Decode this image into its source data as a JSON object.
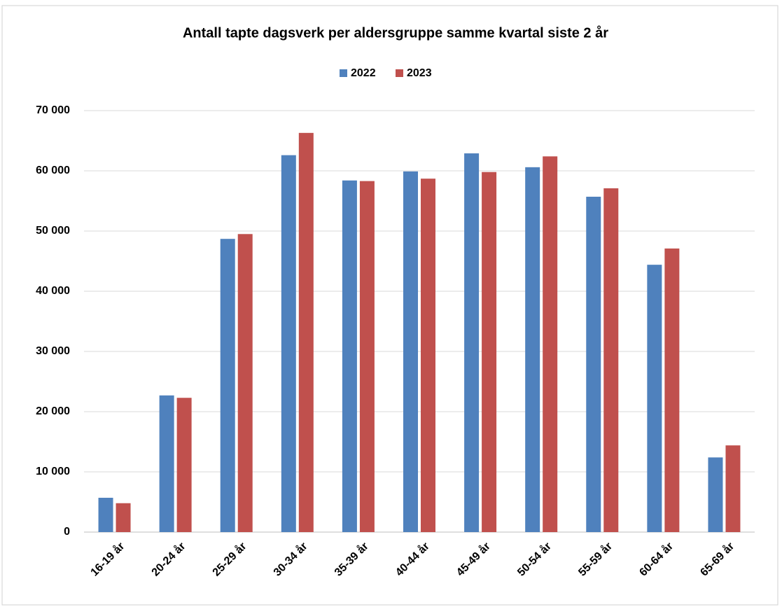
{
  "chart_data": {
    "type": "bar",
    "title": "Antall tapte dagsverk per aldersgruppe samme kvartal siste 2 år",
    "categories": [
      "16-19 år",
      "20-24 år",
      "25-29 år",
      "30-34 år",
      "35-39 år",
      "40-44 år",
      "45-49 år",
      "50-54 år",
      "55-59 år",
      "60-64 år",
      "65-69 år"
    ],
    "series": [
      {
        "name": "2022",
        "color": "#4f81bd",
        "values": [
          5700,
          22700,
          48700,
          62600,
          58400,
          59900,
          62900,
          60600,
          55700,
          44400,
          12400
        ]
      },
      {
        "name": "2023",
        "color": "#c0504d",
        "values": [
          4800,
          22300,
          49500,
          66300,
          58300,
          58700,
          59800,
          62400,
          57100,
          47100,
          14400
        ]
      }
    ],
    "ylim": [
      0,
      70000
    ],
    "yticks": [
      0,
      {
        "value": 10000,
        "label": "10 000"
      },
      {
        "value": 20000,
        "label": "20 000"
      },
      {
        "value": 30000,
        "label": "30 000"
      },
      {
        "value": 40000,
        "label": "40 000"
      },
      {
        "value": 50000,
        "label": "50 000"
      },
      {
        "value": 60000,
        "label": "60 000"
      },
      {
        "value": 70000,
        "label": "70 000"
      }
    ],
    "grid": true,
    "legend": "top"
  }
}
